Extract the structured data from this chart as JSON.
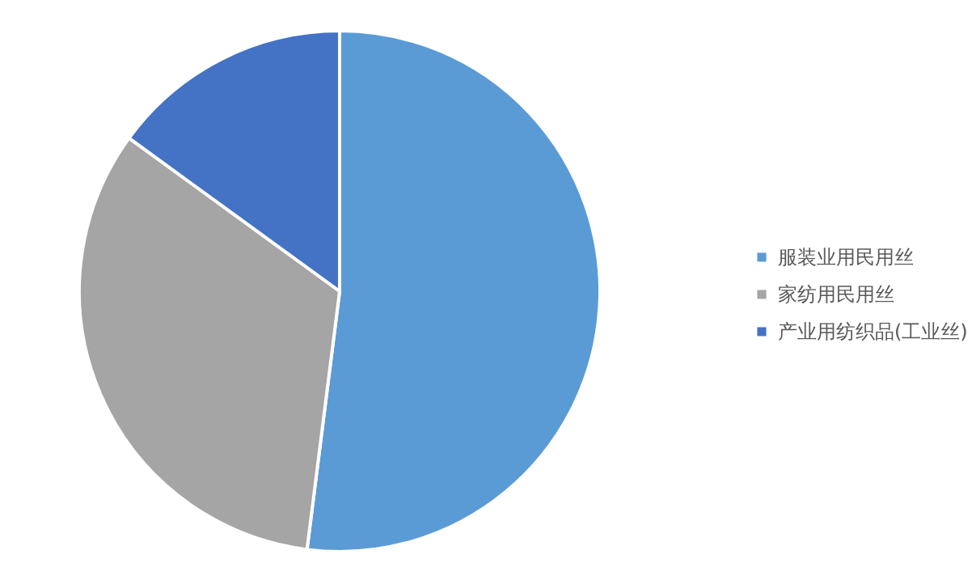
{
  "chart_data": {
    "type": "pie",
    "categories": [
      "服装业用民用丝",
      "家纺用民用丝",
      "产业用纺织品(工业丝)"
    ],
    "values": [
      52,
      33,
      15
    ],
    "colors": [
      "#5b9bd5",
      "#a5a5a5",
      "#4472c4"
    ],
    "legend": "right"
  }
}
